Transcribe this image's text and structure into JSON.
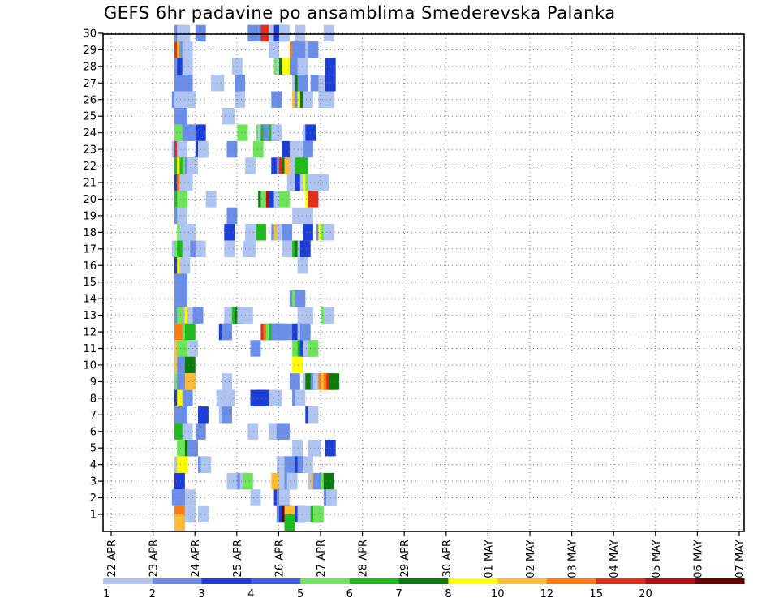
{
  "chart_data": {
    "type": "heatmap",
    "title": "GEFS 6hr padavine po ansamblima Smederevska Palanka",
    "xlabel": "",
    "ylabel": "",
    "x_ticks": [
      "22 APR",
      "23 APR",
      "24 APR",
      "25 APR",
      "26 APR",
      "27 APR",
      "28 APR",
      "29 APR",
      "30 APR",
      "01 MAY",
      "02 MAY",
      "03 MAY",
      "04 MAY",
      "05 MAY",
      "06 MAY",
      "07 MAY"
    ],
    "y_ticks": [
      1,
      2,
      3,
      4,
      5,
      6,
      7,
      8,
      9,
      10,
      11,
      12,
      13,
      14,
      15,
      16,
      17,
      18,
      19,
      20,
      21,
      22,
      23,
      24,
      25,
      26,
      27,
      28,
      29,
      30
    ],
    "x_unit_steps_per_day": 4,
    "grid": true,
    "legend_position": "bottom",
    "colorbar": {
      "labels": [
        "1",
        "2",
        "3",
        "4",
        "5",
        "6",
        "7",
        "8",
        "10",
        "12",
        "15",
        "20"
      ],
      "colors": [
        "#b0c4f2",
        "#6b8ee8",
        "#1c3ed6",
        "#3a62e8",
        "#6fe35c",
        "#1fba1c",
        "#0c7a0c",
        "#ffff00",
        "#ffbb33",
        "#ff7a10",
        "#e0301a",
        "#b01010",
        "#6a0000"
      ]
    },
    "cells": [
      [
        30,
        8.5,
        2
      ],
      [
        30,
        8.75,
        1
      ],
      [
        30,
        9,
        1
      ],
      [
        30,
        10.5,
        2
      ],
      [
        30,
        15.5,
        2
      ],
      [
        30,
        16.5,
        2
      ],
      [
        30,
        16.75,
        11
      ],
      [
        30,
        17.5,
        1
      ],
      [
        30,
        18,
        3
      ],
      [
        30,
        18.25,
        3
      ],
      [
        30,
        18.5,
        1
      ],
      [
        30,
        20,
        1
      ],
      [
        30,
        22.75,
        1
      ],
      [
        29,
        8.5,
        11
      ],
      [
        29,
        8.75,
        9
      ],
      [
        29,
        9,
        2
      ],
      [
        29,
        9.25,
        1
      ],
      [
        29,
        17.5,
        1
      ],
      [
        29,
        19.5,
        10
      ],
      [
        29,
        19.75,
        2
      ],
      [
        29,
        20.75,
        2
      ],
      [
        29,
        21,
        1
      ],
      [
        29,
        21.25,
        2
      ],
      [
        28,
        8.5,
        2
      ],
      [
        28,
        8.75,
        3
      ],
      [
        28,
        9.25,
        1
      ],
      [
        28,
        14,
        1
      ],
      [
        28,
        18,
        5
      ],
      [
        28,
        18.25,
        1
      ],
      [
        28,
        18.5,
        7
      ],
      [
        28,
        18.75,
        8
      ],
      [
        28,
        19.5,
        2
      ],
      [
        28,
        19.9,
        2
      ],
      [
        28,
        20,
        2
      ],
      [
        28,
        20.25,
        1
      ],
      [
        28,
        22.9,
        3
      ],
      [
        27,
        8.5,
        2
      ],
      [
        27,
        8.75,
        2
      ],
      [
        27,
        9.25,
        2
      ],
      [
        27,
        12,
        1
      ],
      [
        27,
        12.25,
        1
      ],
      [
        27,
        14.25,
        2
      ],
      [
        27,
        19.75,
        1
      ],
      [
        27,
        20,
        7
      ],
      [
        27,
        20.25,
        2
      ],
      [
        27,
        21.5,
        2
      ],
      [
        27,
        22.25,
        1
      ],
      [
        27,
        22.9,
        3
      ],
      [
        26,
        8.25,
        2
      ],
      [
        26,
        8.5,
        1
      ],
      [
        26,
        9.25,
        1
      ],
      [
        26,
        9.5,
        1
      ],
      [
        26,
        14.25,
        1
      ],
      [
        26,
        17.75,
        2
      ],
      [
        26,
        19.75,
        9
      ],
      [
        26,
        20,
        2
      ],
      [
        26,
        20.25,
        8
      ],
      [
        26,
        20.5,
        7
      ],
      [
        26,
        20.75,
        1
      ],
      [
        26,
        22.25,
        1
      ],
      [
        26,
        22.75,
        1
      ],
      [
        25,
        8.5,
        2
      ],
      [
        25,
        8.75,
        2
      ],
      [
        25,
        13,
        1
      ],
      [
        25,
        13.25,
        1
      ],
      [
        24,
        8.5,
        5
      ],
      [
        24,
        9.25,
        2
      ],
      [
        24,
        9.5,
        2
      ],
      [
        24,
        10.5,
        3
      ],
      [
        24,
        14.5,
        5
      ],
      [
        24,
        16.25,
        5
      ],
      [
        24,
        16.5,
        1
      ],
      [
        24,
        16.75,
        6
      ],
      [
        24,
        17,
        2
      ],
      [
        24,
        17.25,
        2
      ],
      [
        24,
        17.5,
        6
      ],
      [
        24,
        17.75,
        1
      ],
      [
        24,
        20.75,
        1
      ],
      [
        24,
        21,
        3
      ],
      [
        23,
        8.25,
        1
      ],
      [
        23,
        8.5,
        11
      ],
      [
        23,
        8.75,
        1
      ],
      [
        23,
        10.5,
        3
      ],
      [
        23,
        10.75,
        1
      ],
      [
        23,
        13.5,
        2
      ],
      [
        23,
        16,
        5
      ],
      [
        23,
        18.75,
        3
      ],
      [
        23,
        19.5,
        1
      ],
      [
        23,
        20.5,
        1
      ],
      [
        23,
        20.75,
        2
      ],
      [
        22,
        8.5,
        6
      ],
      [
        22,
        8.75,
        8
      ],
      [
        22,
        9,
        6
      ],
      [
        22,
        9.25,
        5
      ],
      [
        22,
        9.5,
        2
      ],
      [
        22,
        9.75,
        1
      ],
      [
        22,
        15.25,
        1
      ],
      [
        22,
        17.75,
        3
      ],
      [
        22,
        18.25,
        2
      ],
      [
        22,
        18.5,
        11
      ],
      [
        22,
        18.75,
        7
      ],
      [
        22,
        19,
        9
      ],
      [
        22,
        19.25,
        9
      ],
      [
        22,
        19.5,
        1
      ],
      [
        22,
        20,
        6
      ],
      [
        22,
        20.25,
        6
      ],
      [
        21,
        8.5,
        3
      ],
      [
        21,
        8.75,
        10
      ],
      [
        21,
        9,
        1
      ],
      [
        21,
        9.25,
        1
      ],
      [
        21,
        19.25,
        1
      ],
      [
        21,
        19.75,
        1
      ],
      [
        21,
        20,
        3
      ],
      [
        21,
        20.5,
        1
      ],
      [
        21,
        20.75,
        8
      ],
      [
        21,
        21,
        5
      ],
      [
        21,
        21.25,
        1
      ],
      [
        21,
        21.5,
        1
      ],
      [
        21,
        21.75,
        1
      ],
      [
        21,
        22,
        1
      ],
      [
        21,
        22.25,
        1
      ],
      [
        20,
        8.5,
        6
      ],
      [
        20,
        8.75,
        5
      ],
      [
        20,
        11.5,
        1
      ],
      [
        20,
        16.5,
        7
      ],
      [
        20,
        16.75,
        5
      ],
      [
        20,
        17,
        5
      ],
      [
        20,
        17.25,
        12
      ],
      [
        20,
        17.5,
        3
      ],
      [
        20,
        18,
        1
      ],
      [
        20,
        18.5,
        5
      ],
      [
        20,
        21,
        8
      ],
      [
        20,
        21.25,
        11
      ],
      [
        19,
        8.5,
        2
      ],
      [
        19,
        8.75,
        1
      ],
      [
        19,
        13.5,
        2
      ],
      [
        19,
        19.75,
        1
      ],
      [
        19,
        20.75,
        1
      ],
      [
        18,
        8.75,
        5
      ],
      [
        18,
        9,
        1
      ],
      [
        18,
        9.25,
        1
      ],
      [
        18,
        9.5,
        1
      ],
      [
        18,
        13.25,
        3
      ],
      [
        18,
        15.25,
        1
      ],
      [
        18,
        15.5,
        1
      ],
      [
        18,
        16.25,
        6
      ],
      [
        18,
        17.75,
        2
      ],
      [
        18,
        18,
        9
      ],
      [
        18,
        18.25,
        1
      ],
      [
        18,
        18.5,
        1
      ],
      [
        18,
        18.75,
        2
      ],
      [
        18,
        20.75,
        3
      ],
      [
        18,
        22,
        2
      ],
      [
        18,
        22.25,
        8
      ],
      [
        18,
        22.5,
        5
      ],
      [
        18,
        22.75,
        1
      ],
      [
        17,
        8.25,
        1
      ],
      [
        17,
        8.5,
        5
      ],
      [
        17,
        8.75,
        6
      ],
      [
        17,
        9.25,
        1
      ],
      [
        17,
        10,
        2
      ],
      [
        17,
        10.5,
        1
      ],
      [
        17,
        13.25,
        1
      ],
      [
        17,
        15,
        1
      ],
      [
        17,
        15.25,
        1
      ],
      [
        17,
        18.75,
        1
      ],
      [
        17,
        19.5,
        1
      ],
      [
        17,
        19.75,
        6
      ],
      [
        17,
        20,
        7
      ],
      [
        17,
        20.25,
        1
      ],
      [
        17,
        20.5,
        3
      ],
      [
        16,
        8.5,
        3
      ],
      [
        16,
        8.75,
        8
      ],
      [
        16,
        9,
        1
      ],
      [
        16,
        20.25,
        1
      ],
      [
        15,
        8.5,
        2
      ],
      [
        15,
        8.75,
        2
      ],
      [
        14,
        8.5,
        2
      ],
      [
        14,
        8.75,
        2
      ],
      [
        14,
        19.5,
        2
      ],
      [
        14,
        19.75,
        5
      ],
      [
        14,
        20,
        2
      ],
      [
        13,
        8.5,
        2
      ],
      [
        13,
        8.75,
        5
      ],
      [
        13,
        9.25,
        1
      ],
      [
        13,
        9.5,
        8
      ],
      [
        13,
        9.75,
        1
      ],
      [
        13,
        10,
        1
      ],
      [
        13,
        10.25,
        2
      ],
      [
        13,
        13.25,
        1
      ],
      [
        13,
        14,
        6
      ],
      [
        13,
        14.25,
        7
      ],
      [
        13,
        14.5,
        1
      ],
      [
        13,
        15,
        1
      ],
      [
        13,
        20.25,
        1
      ],
      [
        13,
        20.5,
        1
      ],
      [
        13,
        20.75,
        1
      ],
      [
        13,
        22.5,
        5
      ],
      [
        13,
        22.75,
        1
      ],
      [
        12,
        8.5,
        10
      ],
      [
        12,
        8.75,
        10
      ],
      [
        12,
        9.25,
        5
      ],
      [
        12,
        9.5,
        6
      ],
      [
        12,
        12.75,
        3
      ],
      [
        12,
        13,
        2
      ],
      [
        12,
        16.75,
        11
      ],
      [
        12,
        17,
        10
      ],
      [
        12,
        17.25,
        5
      ],
      [
        12,
        17.5,
        6
      ],
      [
        12,
        17.75,
        2
      ],
      [
        12,
        18,
        2
      ],
      [
        12,
        18.25,
        2
      ],
      [
        12,
        18.5,
        2
      ],
      [
        12,
        19.5,
        2
      ],
      [
        12,
        19.75,
        3
      ],
      [
        12,
        20.25,
        1
      ],
      [
        12,
        20.5,
        2
      ],
      [
        11,
        8.5,
        9
      ],
      [
        11,
        8.75,
        5
      ],
      [
        11,
        9.75,
        1
      ],
      [
        11,
        15.75,
        2
      ],
      [
        11,
        19.75,
        5
      ],
      [
        11,
        20.25,
        6
      ],
      [
        11,
        20.5,
        3
      ],
      [
        11,
        20.75,
        1
      ],
      [
        11,
        21,
        1
      ],
      [
        11,
        21.25,
        5
      ],
      [
        10,
        8.5,
        9
      ],
      [
        10,
        8.75,
        2
      ],
      [
        10,
        9.5,
        7
      ],
      [
        10,
        19.75,
        8
      ],
      [
        9,
        8.5,
        5
      ],
      [
        9,
        8.75,
        2
      ],
      [
        9,
        9.5,
        9
      ],
      [
        9,
        13,
        1
      ],
      [
        9,
        19.5,
        2
      ],
      [
        9,
        20.75,
        1
      ],
      [
        9,
        21,
        7
      ],
      [
        9,
        21.5,
        2
      ],
      [
        9,
        21.75,
        1
      ],
      [
        9,
        22.25,
        10
      ],
      [
        9,
        22.5,
        9
      ],
      [
        9,
        22.75,
        10
      ],
      [
        9,
        23,
        11
      ],
      [
        9,
        23.25,
        7
      ],
      [
        8,
        8.5,
        3
      ],
      [
        8,
        8.75,
        8
      ],
      [
        8,
        9.25,
        2
      ],
      [
        8,
        12.5,
        1
      ],
      [
        8,
        12.75,
        1
      ],
      [
        8,
        13,
        1
      ],
      [
        8,
        13.25,
        1
      ],
      [
        8,
        15.75,
        3
      ],
      [
        8,
        16.25,
        3
      ],
      [
        8,
        16.5,
        3
      ],
      [
        8,
        17.5,
        1
      ],
      [
        8,
        17.75,
        1
      ],
      [
        8,
        19.75,
        2
      ],
      [
        8,
        20,
        1
      ],
      [
        7,
        8.5,
        2
      ],
      [
        7,
        8.75,
        2
      ],
      [
        7,
        10.75,
        3
      ],
      [
        7,
        12.75,
        1
      ],
      [
        7,
        13,
        2
      ],
      [
        7,
        21,
        3
      ],
      [
        7,
        21.25,
        1
      ],
      [
        6,
        8.5,
        6
      ],
      [
        6,
        9.25,
        1
      ],
      [
        6,
        10.5,
        2
      ],
      [
        6,
        15.5,
        1
      ],
      [
        6,
        17.5,
        1
      ],
      [
        6,
        17.75,
        1
      ],
      [
        6,
        18.25,
        2
      ],
      [
        6,
        18.5,
        2
      ],
      [
        5,
        8.75,
        5
      ],
      [
        5,
        9.5,
        7
      ],
      [
        5,
        9.75,
        2
      ],
      [
        5,
        19.75,
        1
      ],
      [
        5,
        21.25,
        1
      ],
      [
        5,
        21.5,
        1
      ],
      [
        5,
        22.9,
        3
      ],
      [
        4,
        8.5,
        1
      ],
      [
        4,
        8.75,
        8
      ],
      [
        4,
        10.75,
        2
      ],
      [
        4,
        11,
        1
      ],
      [
        4,
        18.25,
        1
      ],
      [
        4,
        18.75,
        1
      ],
      [
        4,
        19,
        2
      ],
      [
        4,
        19.75,
        2
      ],
      [
        4,
        20,
        3
      ],
      [
        4,
        20.25,
        2
      ],
      [
        4,
        20.75,
        1
      ],
      [
        3,
        8.5,
        3
      ],
      [
        3,
        13.5,
        1
      ],
      [
        3,
        14.5,
        2
      ],
      [
        3,
        14.75,
        1
      ],
      [
        3,
        15,
        5
      ],
      [
        3,
        17.75,
        9
      ],
      [
        3,
        18.5,
        1
      ],
      [
        3,
        19,
        2
      ],
      [
        3,
        19.25,
        1
      ],
      [
        3,
        21.25,
        1
      ],
      [
        3,
        21.5,
        9
      ],
      [
        3,
        21.75,
        2
      ],
      [
        3,
        22.5,
        5
      ],
      [
        3,
        22.75,
        7
      ],
      [
        2,
        8.25,
        2
      ],
      [
        2,
        8.5,
        2
      ],
      [
        2,
        8.75,
        2
      ],
      [
        2,
        9.5,
        1
      ],
      [
        2,
        15.75,
        1
      ],
      [
        2,
        18,
        3
      ],
      [
        2,
        18.25,
        2
      ],
      [
        2,
        18.5,
        1
      ],
      [
        2,
        22.75,
        2
      ],
      [
        2,
        23,
        1
      ],
      [
        1,
        8.5,
        10
      ],
      [
        1,
        9.5,
        1
      ],
      [
        1,
        10.75,
        1
      ],
      [
        1,
        18.25,
        2
      ],
      [
        1,
        18.5,
        3
      ],
      [
        1,
        18.75,
        13
      ],
      [
        1,
        19,
        9
      ],
      [
        1,
        20,
        3
      ],
      [
        1,
        20.25,
        1
      ],
      [
        1,
        20.75,
        1
      ],
      [
        1,
        21.5,
        6
      ],
      [
        1,
        21.75,
        5
      ],
      [
        0.5,
        8.5,
        9
      ],
      [
        0.5,
        19,
        6
      ]
    ]
  }
}
